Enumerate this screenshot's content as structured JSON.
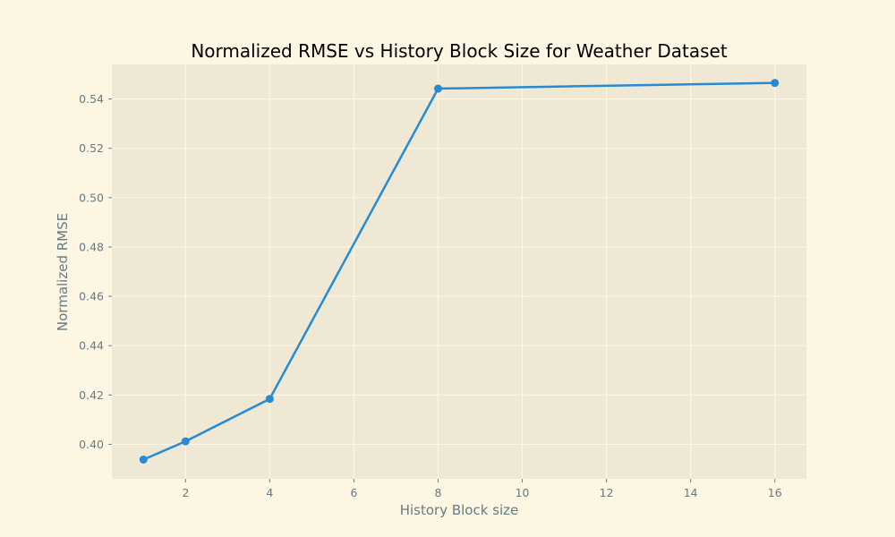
{
  "chart_data": {
    "type": "line",
    "title": "Normalized RMSE vs History Block Size for Weather Dataset",
    "xlabel": "History Block size",
    "ylabel": "Normalized RMSE",
    "xlim": [
      0.25,
      16.75
    ],
    "ylim": [
      0.386,
      0.554
    ],
    "xticks": [
      2,
      4,
      6,
      8,
      10,
      12,
      14,
      16
    ],
    "yticks": [
      0.4,
      0.42,
      0.44,
      0.46,
      0.48,
      0.5,
      0.52,
      0.54
    ],
    "grid": true,
    "series": [
      {
        "x": [
          1,
          2,
          4,
          8,
          16
        ],
        "values": [
          0.3938,
          0.4012,
          0.4184,
          0.5442,
          0.5465
        ]
      }
    ],
    "colors": {
      "figure_background": "#fdf6e3",
      "plot_background": "#eee8d5",
      "grid": "#fdf6e3",
      "line": "#268bd2",
      "text": "#657b83",
      "title": "#000000"
    }
  }
}
